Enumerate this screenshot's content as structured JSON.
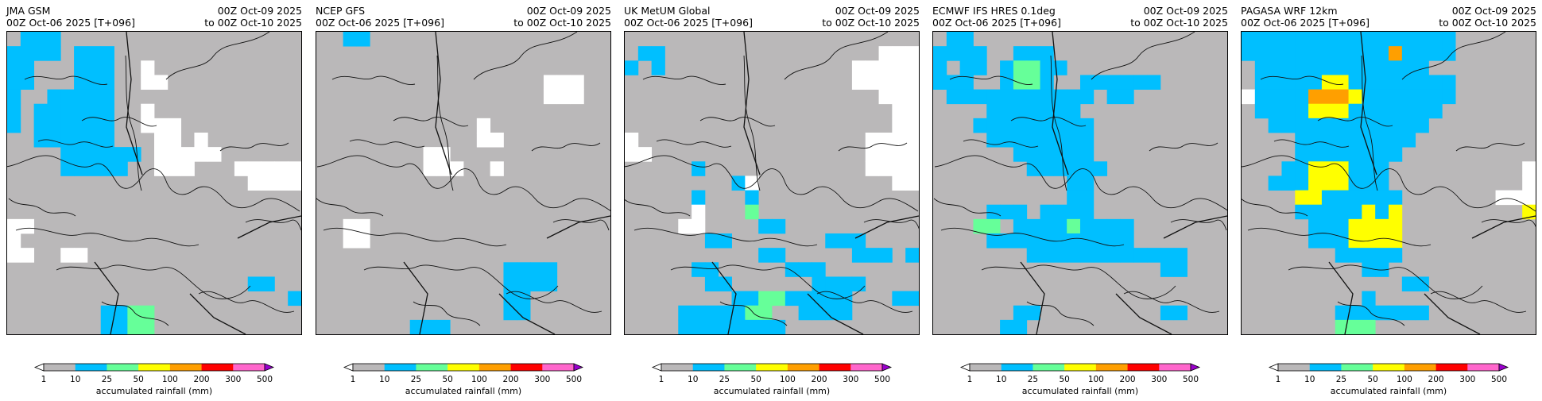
{
  "colormap": {
    "bins": [
      "1",
      "10",
      "25",
      "50",
      "100",
      "200",
      "300",
      "500"
    ],
    "colors": [
      "#bab8b9",
      "#00bfff",
      "#66ff99",
      "#ffff00",
      "#ff9f00",
      "#ff0000",
      "#ff66cc"
    ],
    "under_color": "#ffffff",
    "over_color": "#9900cc",
    "label": "accumulated rainfall (mm)"
  },
  "chart_data": [
    {
      "type": "heatmap",
      "title": "JMA GSM",
      "subtitle": "00Z Oct-06 2025 [T+096]",
      "valid_from": "00Z Oct-09 2025",
      "valid_to": "to 00Z Oct-10 2025",
      "legend_label": "accumulated rainfall (mm)",
      "categories": [
        "<1",
        "1-10",
        "10-25",
        "25-50",
        "50-100",
        "100-200",
        "200-300",
        "300-500"
      ],
      "grid": [
        "1222111111111111111111",
        "2222122211111111111111",
        "2211122211011111111111",
        "2211122211001111111111",
        "2112222211111111111111",
        "2122222211011111111111",
        "2122222211000111111111",
        "1122222211100101111111",
        "1111222222100000111111",
        "1111222221100011100000",
        "1111111111111111110000",
        "1111111111111111111111",
        "1111111111111111111111",
        "0011111111111111111111",
        "0111111111111111111111",
        "0011001111111111111111",
        "1111111111111111111111",
        "1111111111111111112211",
        "1111111111111111111112",
        "1111111223311111111111",
        "1111111223311111111111"
      ]
    },
    {
      "type": "heatmap",
      "title": "NCEP GFS",
      "subtitle": "00Z Oct-06 2025 [T+096]",
      "valid_from": "00Z Oct-09 2025",
      "valid_to": "to 00Z Oct-10 2025",
      "legend_label": "accumulated rainfall (mm)",
      "categories": [
        "<1",
        "1-10",
        "10-25",
        "25-50",
        "50-100",
        "100-200",
        "200-300",
        "300-500"
      ],
      "grid": [
        "1122111111111111111111",
        "1111111111111111111111",
        "1111111111111111111111",
        "1111111111111111100011",
        "1111111111111111100011",
        "1111111111111111111111",
        "1111111111110111111111",
        "1111111111110011111111",
        "1111111100111111111111",
        "1111111100011011111111",
        "1111111111111111111111",
        "1111111111111111111111",
        "1111111111111111111111",
        "1100111111111111111111",
        "1100111111111111111111",
        "1111111111111111111111",
        "1111111111111122221111",
        "1111111111111122221111",
        "1111111111111122111111",
        "1111111111111122111111",
        "1111111222111111111111"
      ]
    },
    {
      "type": "heatmap",
      "title": "UK MetUM Global",
      "subtitle": "00Z Oct-06 2025 [T+096]",
      "valid_from": "00Z Oct-09 2025",
      "valid_to": "to 00Z Oct-10 2025",
      "legend_label": "accumulated rainfall (mm)",
      "categories": [
        "<1",
        "1-10",
        "10-25",
        "25-50",
        "50-100",
        "100-200",
        "200-300",
        "300-500"
      ],
      "grid": [
        "1111111111111111111111",
        "1221111111111111111000",
        "2121111111111111100000",
        "1111111111111111100000",
        "1111111111111111111000",
        "1111111111111111111100",
        "1111111111111111111100",
        "0111111111111111110000",
        "0011111111111111110000",
        "1111121111111111110000",
        "1111111120111111111100",
        "1111121112111111111111",
        "1111101113111111111111",
        "1111001111221111111111",
        "1111112211111112221111",
        "1111111111221111122212",
        "1111122111112221111111",
        "1111112211111122221111",
        "1111111122332222211122",
        "1111222223311222211111",
        "1111222222221111111111"
      ]
    },
    {
      "type": "heatmap",
      "title": "ECMWF IFS HRES 0.1deg",
      "subtitle": "00Z Oct-06 2025 [T+096]",
      "valid_from": "00Z Oct-09 2025",
      "valid_to": "to 00Z Oct-10 2025",
      "legend_label": "accumulated rainfall (mm)",
      "categories": [
        "<1",
        "1-10",
        "10-25",
        "25-50",
        "50-100",
        "100-200",
        "200-300",
        "300-500"
      ],
      "grid": [
        "1221111111111111111111",
        "2222112221111111111111",
        "2122123322111111111111",
        "2221123321122222211111",
        "1222222222221221111111",
        "1111222222211111111111",
        "1112222222221111111111",
        "1111222222221111111111",
        "1111112222221111111111",
        "1111111222222111111111",
        "1111111111221111111111",
        "1111111111221111111111",
        "1111222122221111111111",
        "1113312222322221111111",
        "1111222222222221111111",
        "1111111222222222222111",
        "1111111111111111122111",
        "1111111111111111111111",
        "1111111111111111111111",
        "1111112211111111122111",
        "1111122111111111111111"
      ]
    },
    {
      "type": "heatmap",
      "title": "PAGASA WRF 12km",
      "subtitle": "00Z Oct-06 2025 [T+096]",
      "valid_from": "00Z Oct-09 2025",
      "valid_to": "to 00Z Oct-10 2025",
      "legend_label": "accumulated rainfall (mm)",
      "categories": [
        "<1",
        "1-10",
        "10-25",
        "25-50",
        "50-100",
        "100-200",
        "200-300",
        "300-500"
      ],
      "grid": [
        "2222222222222222111111",
        "2222222222252222111111",
        "1222222222222211111111",
        "1222224422222222111111",
        "0222255542222222111111",
        "1222244422222221111111",
        "1122222222222211111111",
        "1111222222222111111111",
        "1111222222221111111111",
        "1112244422211111111110",
        "1122244422211111111110",
        "1111442222221111111000",
        "1111222224241111111114",
        "1111122244441111111111",
        "1111122244441111111111",
        "1111111222221111111111",
        "1111111112211111111111",
        "1111111111112211111111",
        "1111111112111111111111",
        "1111111222222211111111",
        "1111111333111111111111"
      ]
    }
  ]
}
